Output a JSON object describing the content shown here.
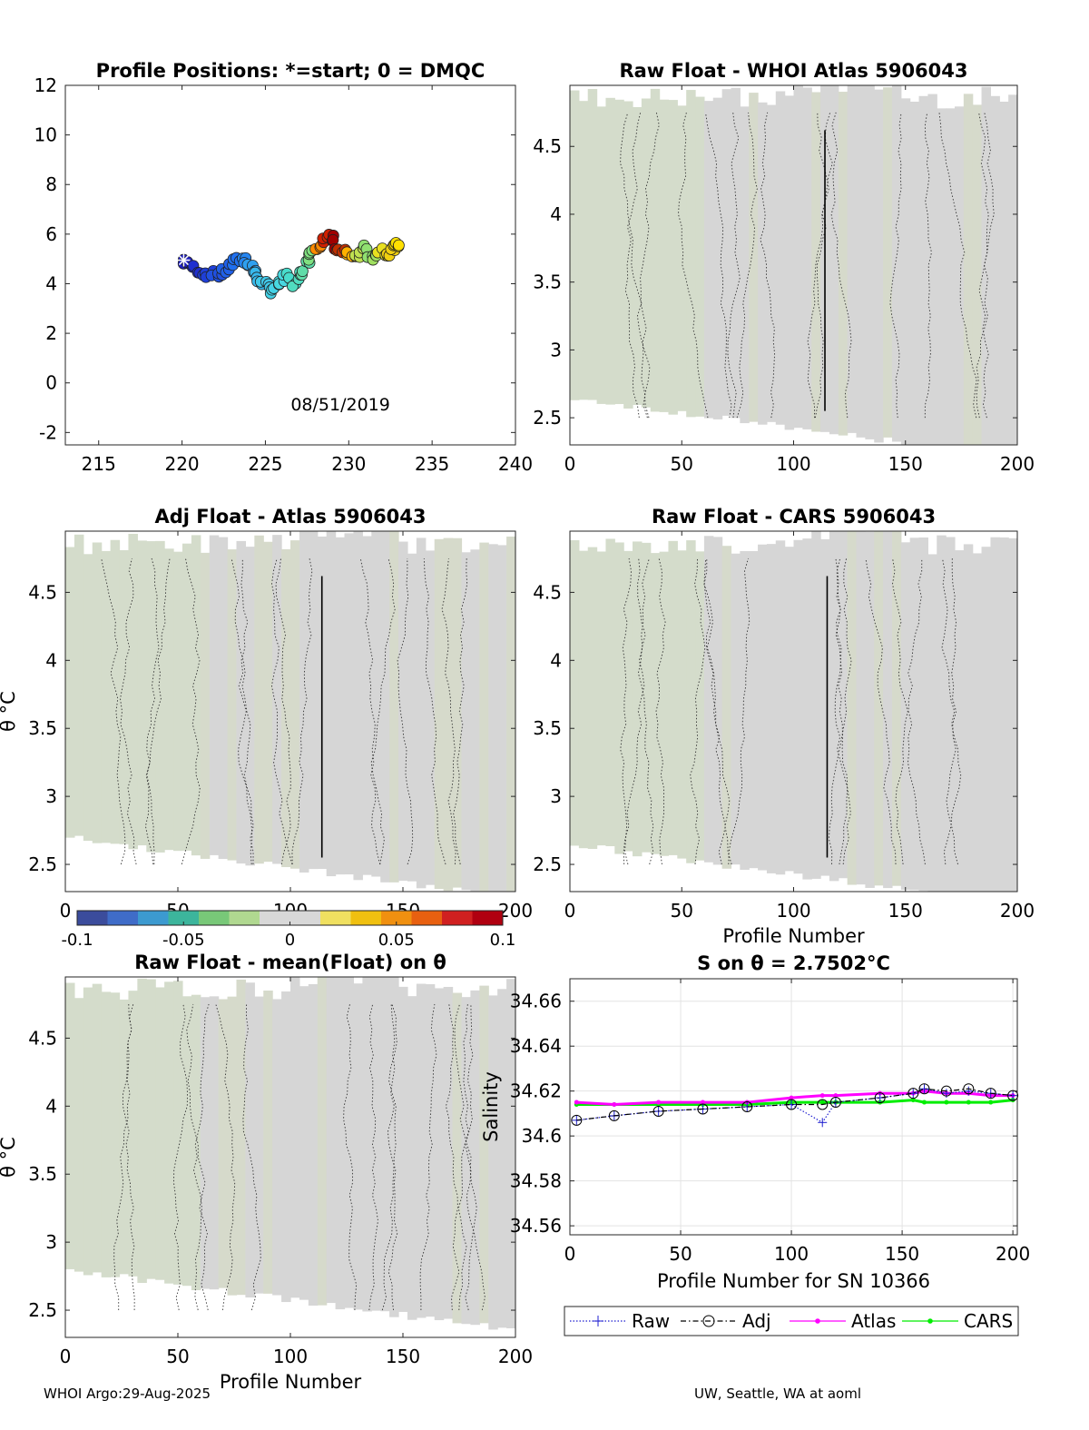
{
  "chart_data": [
    {
      "id": "positions",
      "type": "scatter",
      "title": "Profile Positions: *=start; 0 = DMQC",
      "annotation": "08/51/2019",
      "xlim": [
        213,
        240
      ],
      "ylim": [
        -2.5,
        12
      ],
      "xticks": [
        215,
        220,
        225,
        230,
        235,
        240
      ],
      "yticks": [
        -2,
        0,
        2,
        4,
        6,
        8,
        10,
        12
      ],
      "start_marker": "*",
      "track": [
        {
          "x": 220.1,
          "y": 4.95,
          "color": "#1f1fc0"
        },
        {
          "x": 220.6,
          "y": 4.7,
          "color": "#1f2fd0"
        },
        {
          "x": 221.2,
          "y": 4.45,
          "color": "#1f3fd8"
        },
        {
          "x": 221.9,
          "y": 4.35,
          "color": "#2050e0"
        },
        {
          "x": 222.5,
          "y": 4.45,
          "color": "#2060e8"
        },
        {
          "x": 223.1,
          "y": 4.8,
          "color": "#2070f0"
        },
        {
          "x": 223.6,
          "y": 5.05,
          "color": "#2585f0"
        },
        {
          "x": 224.1,
          "y": 4.8,
          "color": "#2fa0f0"
        },
        {
          "x": 224.4,
          "y": 4.35,
          "color": "#38b8ec"
        },
        {
          "x": 224.8,
          "y": 4.0,
          "color": "#40c8e8"
        },
        {
          "x": 225.3,
          "y": 3.75,
          "color": "#45d2e6"
        },
        {
          "x": 225.9,
          "y": 3.95,
          "color": "#48d8e0"
        },
        {
          "x": 226.3,
          "y": 4.3,
          "color": "#48dccc"
        },
        {
          "x": 226.8,
          "y": 4.0,
          "color": "#50dcc0"
        },
        {
          "x": 227.3,
          "y": 4.5,
          "color": "#60dca8"
        },
        {
          "x": 227.6,
          "y": 5.1,
          "color": "#80e080"
        },
        {
          "x": 228.0,
          "y": 5.5,
          "color": "#ff8a00"
        },
        {
          "x": 228.5,
          "y": 5.7,
          "color": "#d02000"
        },
        {
          "x": 229.0,
          "y": 5.9,
          "color": "#a00000"
        },
        {
          "x": 229.4,
          "y": 5.4,
          "color": "#c03000"
        },
        {
          "x": 229.9,
          "y": 5.2,
          "color": "#ffb000"
        },
        {
          "x": 230.4,
          "y": 5.0,
          "color": "#c0e050"
        },
        {
          "x": 230.9,
          "y": 5.4,
          "color": "#90e070"
        },
        {
          "x": 231.4,
          "y": 5.0,
          "color": "#a0e060"
        },
        {
          "x": 231.9,
          "y": 5.3,
          "color": "#e8e020"
        },
        {
          "x": 232.4,
          "y": 5.2,
          "color": "#f0d010"
        },
        {
          "x": 232.8,
          "y": 5.5,
          "color": "#f8e000"
        },
        {
          "x": 233.0,
          "y": 5.55,
          "color": "#ffe000"
        }
      ]
    },
    {
      "id": "raw-atlas",
      "type": "heatmap",
      "title": "Raw Float - WHOI Atlas  5906043",
      "xlim": [
        0,
        200
      ],
      "ylim": [
        2.3,
        4.95
      ],
      "xticks": [
        0,
        50,
        100,
        150,
        200
      ],
      "yticks": [
        2.5,
        3,
        3.5,
        4,
        4.5
      ],
      "solid_contour_x": 114,
      "bottom_start": 2.65
    },
    {
      "id": "adj-atlas",
      "type": "heatmap",
      "title": "Adj Float - Atlas  5906043",
      "ylabel": "θ °C",
      "xlim": [
        0,
        200
      ],
      "ylim": [
        2.3,
        4.95
      ],
      "xticks": [
        0,
        50,
        100,
        150,
        200
      ],
      "yticks": [
        2.5,
        3,
        3.5,
        4,
        4.5
      ],
      "solid_contour_x": 114,
      "bottom_start": 2.7
    },
    {
      "id": "raw-cars",
      "type": "heatmap",
      "title": "Raw Float - CARS  5906043",
      "xlabel": "Profile Number",
      "xlim": [
        0,
        200
      ],
      "ylim": [
        2.3,
        4.95
      ],
      "xticks": [
        0,
        50,
        100,
        150,
        200
      ],
      "yticks": [
        2.5,
        3,
        3.5,
        4,
        4.5
      ],
      "solid_contour_x": 115,
      "bottom_start": 2.65
    },
    {
      "id": "raw-mean",
      "type": "heatmap",
      "title": "Raw Float - mean(Float) on θ",
      "ylabel": "θ °C",
      "xlabel": "Profile Number",
      "xlim": [
        0,
        200
      ],
      "ylim": [
        2.3,
        4.95
      ],
      "xticks": [
        0,
        50,
        100,
        150,
        200
      ],
      "yticks": [
        2.5,
        3,
        3.5,
        4,
        4.5
      ],
      "solid_contour_x": null,
      "bottom_start": 2.8
    },
    {
      "id": "salinity",
      "type": "line",
      "title": "S on θ = 2.7502°C",
      "xlabel": "Profile Number for SN 10366",
      "ylabel": "Salinity",
      "xlim": [
        0,
        202
      ],
      "ylim": [
        34.556,
        34.67
      ],
      "xticks": [
        0,
        50,
        100,
        150,
        200
      ],
      "yticks": [
        34.56,
        34.58,
        34.6,
        34.62,
        34.64,
        34.66
      ],
      "ytick_labels": [
        "34.56",
        "34.58",
        "34.6",
        "34.62",
        "34.64",
        "34.66"
      ],
      "grid": true,
      "legend_placement": "bottom",
      "x": [
        3,
        20,
        40,
        60,
        80,
        100,
        114,
        120,
        140,
        155,
        160,
        170,
        180,
        190,
        200
      ],
      "series": [
        {
          "name": "Raw",
          "color": "#1f1fd0",
          "values": [
            34.607,
            34.609,
            34.611,
            34.612,
            34.613,
            34.614,
            34.606,
            34.615,
            34.617,
            34.619,
            34.621,
            34.619,
            34.62,
            34.619,
            34.618
          ]
        },
        {
          "name": "Adj",
          "color": "#000000",
          "values": [
            34.607,
            34.609,
            34.611,
            34.612,
            34.613,
            34.614,
            34.614,
            34.615,
            34.617,
            34.619,
            34.621,
            34.62,
            34.621,
            34.619,
            34.618
          ]
        },
        {
          "name": "Atlas",
          "color": "#ff00ff",
          "values": [
            34.615,
            34.614,
            34.615,
            34.615,
            34.615,
            34.617,
            34.618,
            34.618,
            34.619,
            34.619,
            34.62,
            34.619,
            34.619,
            34.618,
            34.618
          ]
        },
        {
          "name": "CARS",
          "color": "#00ee00",
          "values": [
            34.614,
            34.614,
            34.614,
            34.614,
            34.614,
            34.615,
            34.615,
            34.615,
            34.615,
            34.616,
            34.615,
            34.615,
            34.615,
            34.615,
            34.616
          ]
        }
      ]
    }
  ],
  "colorbar": {
    "ticks": [
      -0.1,
      -0.05,
      0,
      0.05,
      0.1
    ],
    "tick_labels": [
      "-0.1",
      "-0.05",
      "0",
      "0.05",
      "0.1"
    ],
    "colors": [
      "#3b4c9c",
      "#3f6cc8",
      "#3c9ad0",
      "#3cb59c",
      "#78c878",
      "#b0d890",
      "#d8d8d8",
      "#d8d8d8",
      "#f0e060",
      "#f0c010",
      "#f09010",
      "#e86010",
      "#d02020",
      "#b00010"
    ]
  },
  "footer": {
    "left": "WHOI Argo:29-Aug-2025",
    "right": "UW, Seattle, WA at aoml"
  }
}
